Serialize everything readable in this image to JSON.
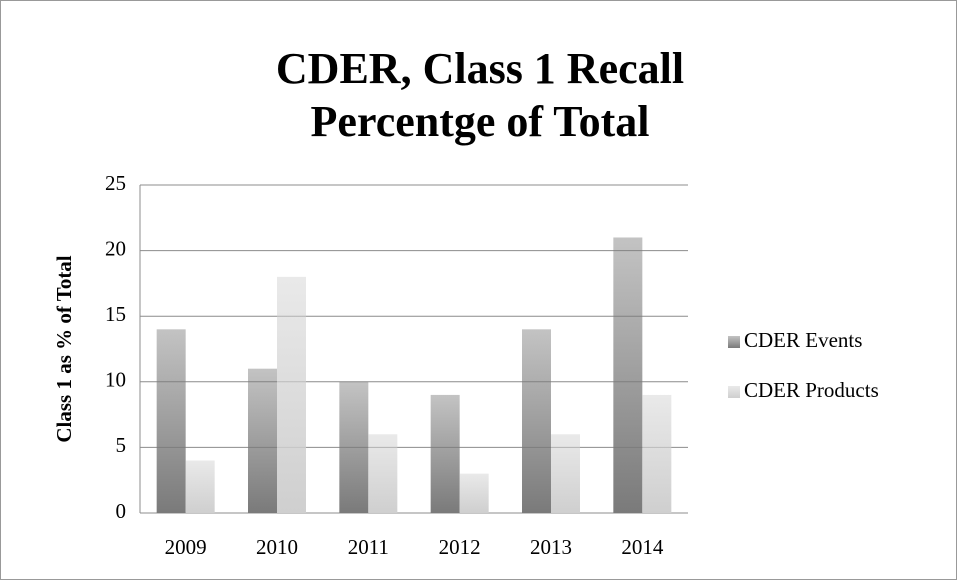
{
  "chart_data": {
    "type": "bar",
    "title": [
      "CDER, Class 1 Recall",
      "Percentge of Total"
    ],
    "y_label": "Class 1 as % of Total",
    "categories": [
      "2009",
      "2010",
      "2011",
      "2012",
      "2013",
      "2014"
    ],
    "series": [
      {
        "name": "CDER Events",
        "color": "#7a7a7a",
        "values": [
          14,
          11,
          10,
          9,
          14,
          21
        ]
      },
      {
        "name": "CDER Products",
        "color": "#cfcfcf",
        "values": [
          4,
          18,
          6,
          3,
          6,
          9
        ]
      }
    ],
    "ylim": [
      0,
      25
    ],
    "yticks": [
      0,
      5,
      10,
      15,
      20,
      25
    ],
    "grid": true,
    "legend": "right"
  }
}
